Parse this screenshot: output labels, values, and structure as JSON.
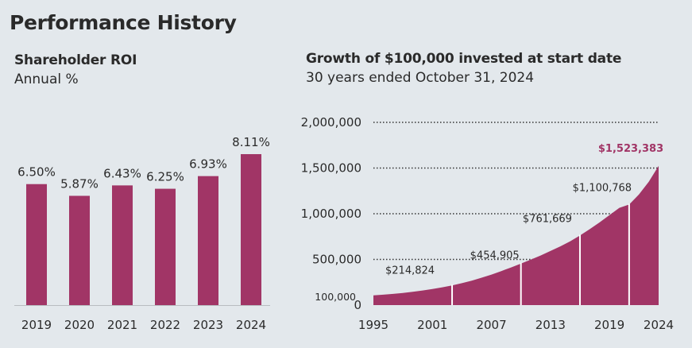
{
  "header": {
    "title": "Performance History"
  },
  "roi_panel": {
    "title": "Shareholder ROI",
    "subtitle": "Annual %"
  },
  "growth_panel": {
    "title": "Growth of $100,000 invested at start date",
    "subtitle": "30 years ended October 31, 2024"
  },
  "colors": {
    "bar": "#a13566",
    "highlight_label": "#a13566",
    "text": "#2a2a2a",
    "background": "#e3e8ec"
  },
  "chart_data": [
    {
      "type": "bar",
      "title": "Shareholder ROI",
      "subtitle": "Annual %",
      "categories": [
        "2019",
        "2020",
        "2021",
        "2022",
        "2023",
        "2024"
      ],
      "values": [
        6.5,
        5.87,
        6.43,
        6.25,
        6.93,
        8.11
      ],
      "data_labels": [
        "6.50%",
        "5.87%",
        "6.43%",
        "6.25%",
        "6.93%",
        "8.11%"
      ],
      "ylim": [
        0,
        8.11
      ],
      "grid": false
    },
    {
      "type": "area",
      "title": "Growth of $100,000 invested at start date",
      "subtitle": "30 years ended October 31, 2024",
      "x": [
        1995,
        1996,
        1997,
        1998,
        1999,
        2000,
        2001,
        2002,
        2003,
        2004,
        2005,
        2006,
        2007,
        2008,
        2009,
        2010,
        2011,
        2012,
        2013,
        2014,
        2015,
        2016,
        2017,
        2018,
        2019,
        2020,
        2021,
        2022,
        2023,
        2024
      ],
      "values": [
        106000,
        114000,
        123000,
        133000,
        145000,
        160000,
        176000,
        195000,
        215000,
        240000,
        268000,
        300000,
        334000,
        372000,
        412000,
        454905,
        497000,
        543000,
        592000,
        643000,
        697000,
        761669,
        831000,
        905000,
        985000,
        1064000,
        1100768,
        1210000,
        1350000,
        1523383
      ],
      "xticks": [
        "1995",
        "2001",
        "2007",
        "2013",
        "2019",
        "2024"
      ],
      "yticks": [
        "2,000,000",
        "1,500,000",
        "1,000,000",
        "500,000",
        "0"
      ],
      "ylim": [
        0,
        2000000
      ],
      "start_label": "100,000",
      "annotations": [
        {
          "year": 2003,
          "label": "$214,824"
        },
        {
          "year": 2010,
          "label": "$454,905"
        },
        {
          "year": 2016,
          "label": "$761,669"
        },
        {
          "year": 2021,
          "label": "$1,100,768"
        },
        {
          "year": 2024,
          "label": "$1,523,383",
          "highlight": true
        }
      ],
      "grid": "dotted horizontal"
    }
  ]
}
